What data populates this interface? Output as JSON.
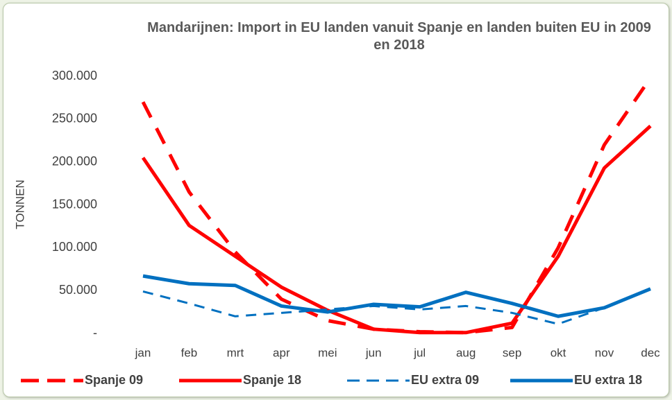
{
  "chart_data": {
    "type": "line",
    "title": "Mandarijnen: Import in EU landen vanuit Spanje en landen buiten EU in 2009 en 2018",
    "y_label": "TONNEN",
    "categories": [
      "jan",
      "feb",
      "mrt",
      "apr",
      "mei",
      "jun",
      "jul",
      "aug",
      "sep",
      "okt",
      "nov",
      "dec"
    ],
    "series": [
      {
        "name": "Spanje 09",
        "color": "#ff0000",
        "dashed": true,
        "width": 5,
        "values": [
          270000,
          165000,
          95000,
          40000,
          15000,
          5000,
          2000,
          1000,
          7000,
          100000,
          220000,
          298000
        ]
      },
      {
        "name": "Spanje 18",
        "color": "#ff0000",
        "dashed": false,
        "width": 5,
        "values": [
          205000,
          126000,
          90000,
          54000,
          27000,
          5000,
          1000,
          1000,
          12000,
          90000,
          193000,
          242000
        ]
      },
      {
        "name": "EU extra 09",
        "color": "#0070c0",
        "dashed": true,
        "width": 3,
        "values": [
          49000,
          35000,
          20000,
          24000,
          28000,
          32000,
          28000,
          32000,
          24000,
          11000,
          30000,
          52000
        ]
      },
      {
        "name": "EU extra 18",
        "color": "#0070c0",
        "dashed": false,
        "width": 5,
        "values": [
          67000,
          58000,
          56000,
          32000,
          25000,
          34000,
          31000,
          48000,
          35000,
          20000,
          30000,
          52000
        ]
      }
    ],
    "ylim": [
      0,
      300000
    ],
    "yticks": [
      {
        "value": 0,
        "label": "-"
      },
      {
        "value": 50000,
        "label": "50.000"
      },
      {
        "value": 100000,
        "label": "100.000"
      },
      {
        "value": 150000,
        "label": "150.000"
      },
      {
        "value": 200000,
        "label": "200.000"
      },
      {
        "value": 250000,
        "label": "250.000"
      },
      {
        "value": 300000,
        "label": "300.000"
      }
    ],
    "grid": false,
    "legend": "bottom"
  }
}
